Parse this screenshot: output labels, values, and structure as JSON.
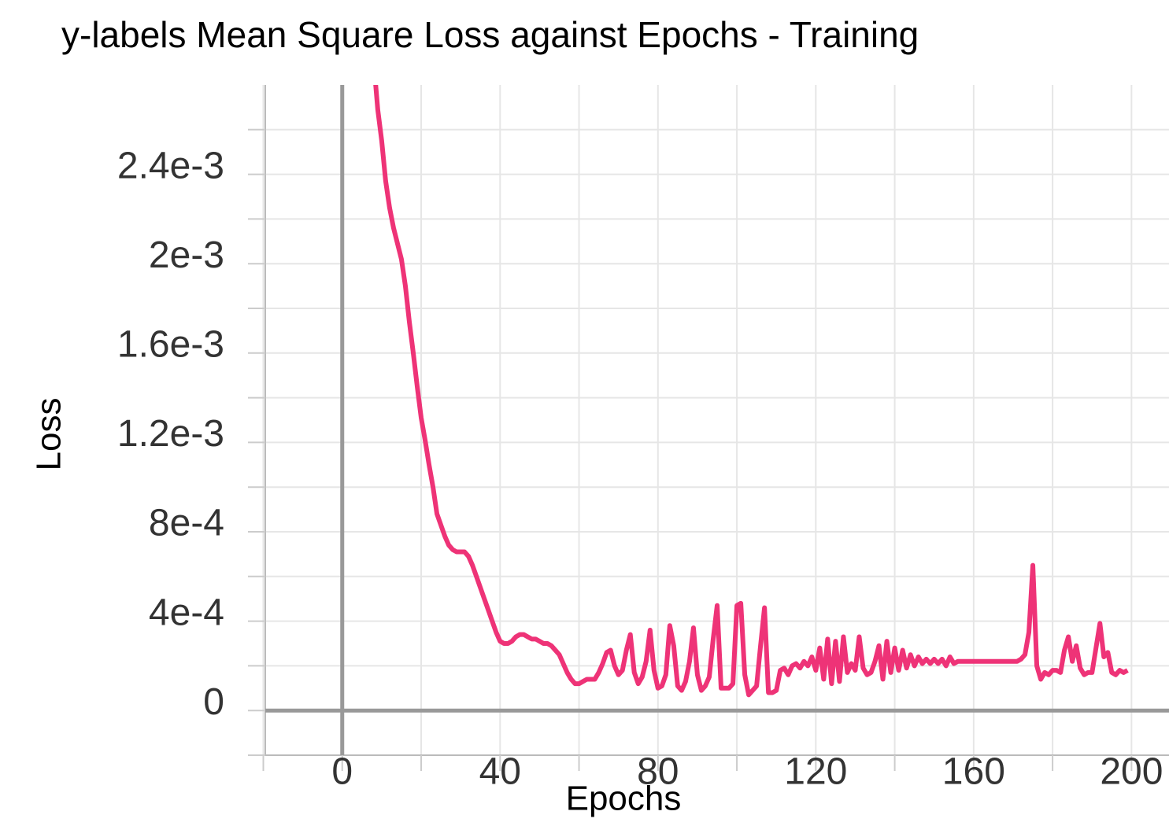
{
  "chart_data": {
    "type": "line",
    "title": "y-labels Mean Square Loss against Epochs - Training",
    "xlabel": "Epochs",
    "ylabel": "Loss",
    "color": "#ee3377",
    "grid": true,
    "xlim": [
      -19.5,
      209.5
    ],
    "ylim": [
      -0.0002,
      0.0028
    ],
    "xticks": [
      0,
      40,
      80,
      120,
      160,
      200
    ],
    "yticks": [
      0,
      {
        "value": 0.0004,
        "label": "4e-4"
      },
      {
        "value": 0.0008,
        "label": "8e-4"
      },
      {
        "value": 0.0012,
        "label": "1.2e-3"
      },
      {
        "value": 0.0016,
        "label": "1.6e-3"
      },
      {
        "value": 0.002,
        "label": "2e-3"
      },
      {
        "value": 0.0024,
        "label": "2.4e-3"
      }
    ],
    "xminor_ticks": [
      -20,
      20,
      60,
      100,
      140,
      180
    ],
    "yminor_ticks": [
      -0.0002,
      0.0002,
      0.0006,
      0.001,
      0.0014,
      0.0018,
      0.0022,
      0.0026
    ],
    "x": [
      8,
      9,
      10,
      11,
      12,
      13,
      14,
      15,
      16,
      17,
      18,
      19,
      20,
      21,
      22,
      23,
      24,
      25,
      26,
      27,
      28,
      29,
      30,
      31,
      32,
      33,
      34,
      35,
      36,
      37,
      38,
      39,
      40,
      41,
      42,
      43,
      44,
      45,
      46,
      47,
      48,
      49,
      50,
      51,
      52,
      53,
      54,
      55,
      56,
      57,
      58,
      59,
      60,
      61,
      62,
      63,
      64,
      65,
      66,
      67,
      68,
      69,
      70,
      71,
      72,
      73,
      74,
      75,
      76,
      77,
      78,
      79,
      80,
      81,
      82,
      83,
      84,
      85,
      86,
      87,
      88,
      89,
      90,
      91,
      92,
      93,
      94,
      95,
      96,
      97,
      98,
      99,
      100,
      101,
      102,
      103,
      104,
      105,
      106,
      107,
      108,
      109,
      110,
      111,
      112,
      113,
      114,
      115,
      116,
      117,
      118,
      119,
      120,
      121,
      122,
      123,
      124,
      125,
      126,
      127,
      128,
      129,
      130,
      131,
      132,
      133,
      134,
      135,
      136,
      137,
      138,
      139,
      140,
      141,
      142,
      143,
      144,
      145,
      146,
      147,
      148,
      149,
      150,
      151,
      152,
      153,
      154,
      155,
      156,
      157,
      158,
      159,
      160,
      161,
      162,
      163,
      164,
      165,
      166,
      167,
      168,
      169,
      170,
      171,
      172,
      173,
      174,
      175,
      176,
      177,
      178,
      179,
      180,
      181,
      182,
      183,
      184,
      185,
      186,
      187,
      188,
      189,
      190,
      191,
      192,
      193,
      194,
      195,
      196,
      197,
      198,
      199
    ],
    "values": [
      0.0029,
      0.00269,
      0.00255,
      0.00237,
      0.00225,
      0.00216,
      0.00209,
      0.00202,
      0.0019,
      0.00174,
      0.0016,
      0.00145,
      0.00131,
      0.00121,
      0.0011,
      0.001,
      0.00088,
      0.00083,
      0.00078,
      0.00074,
      0.00072,
      0.00071,
      0.00071,
      0.00071,
      0.00069,
      0.00065,
      0.0006,
      0.00055,
      0.0005,
      0.00045,
      0.0004,
      0.00035,
      0.00031,
      0.0003,
      0.0003,
      0.00031,
      0.00033,
      0.00034,
      0.00034,
      0.00033,
      0.00032,
      0.00032,
      0.00031,
      0.0003,
      0.0003,
      0.00029,
      0.00027,
      0.00025,
      0.00021,
      0.00017,
      0.00014,
      0.00012,
      0.00012,
      0.00013,
      0.00014,
      0.00014,
      0.00014,
      0.00017,
      0.00021,
      0.00026,
      0.00027,
      0.0002,
      0.00016,
      0.00018,
      0.00027,
      0.00034,
      0.00017,
      0.00012,
      0.00015,
      0.00022,
      0.00036,
      0.00018,
      0.0001,
      0.00011,
      0.00016,
      0.00038,
      0.00029,
      0.00011,
      9e-05,
      0.00013,
      0.00022,
      0.00037,
      0.00016,
      9e-05,
      0.00011,
      0.00015,
      0.00032,
      0.00047,
      0.0001,
      0.0001,
      0.0001,
      0.00012,
      0.00047,
      0.00048,
      0.00016,
      7e-05,
      9e-05,
      0.00011,
      0.00029,
      0.00046,
      8e-05,
      8e-05,
      9e-05,
      0.00018,
      0.00019,
      0.00016,
      0.0002,
      0.00021,
      0.00019,
      0.00022,
      0.0002,
      0.00024,
      0.00018,
      0.00028,
      0.00014,
      0.00032,
      0.00012,
      0.00031,
      0.00013,
      0.00033,
      0.00017,
      0.00021,
      0.00018,
      0.00033,
      0.00019,
      0.00016,
      0.00017,
      0.00022,
      0.00029,
      0.00014,
      0.00031,
      0.00017,
      0.00028,
      0.00018,
      0.00027,
      0.00019,
      0.00025,
      0.0002,
      0.00024,
      0.00021,
      0.00023,
      0.00021,
      0.00023,
      0.00021,
      0.00023,
      0.0002,
      0.00024,
      0.00021,
      0.00022,
      0.00022,
      0.00022,
      0.00022,
      0.00022,
      0.00022,
      0.00022,
      0.00022,
      0.00022,
      0.00022,
      0.00022,
      0.00022,
      0.00022,
      0.00022,
      0.00022,
      0.00022,
      0.00023,
      0.00025,
      0.00035,
      0.00065,
      0.0002,
      0.00014,
      0.00017,
      0.00016,
      0.00018,
      0.00018,
      0.00017,
      0.00027,
      0.00033,
      0.00022,
      0.00029,
      0.00019,
      0.00016,
      0.00017,
      0.00017,
      0.00028,
      0.00039,
      0.00024,
      0.00026,
      0.00017,
      0.00016,
      0.00018,
      0.00017,
      0.00018
    ]
  }
}
